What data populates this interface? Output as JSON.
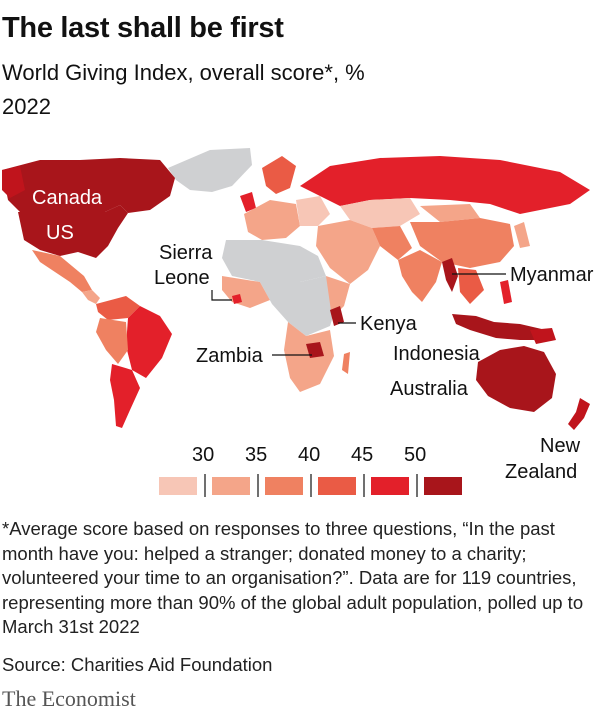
{
  "header": {
    "title": "The last shall be first",
    "subtitle": "World Giving Index, overall score*, %",
    "year": "2022"
  },
  "map_labels": {
    "canada": "Canada",
    "us": "US",
    "sierra_leone_1": "Sierra",
    "sierra_leone_2": "Leone",
    "myanmar": "Myanmar",
    "kenya": "Kenya",
    "indonesia": "Indonesia",
    "zambia": "Zambia",
    "australia": "Australia",
    "new_zealand_1": "New",
    "new_zealand_2": "Zealand"
  },
  "legend": {
    "ticks": [
      "30",
      "35",
      "40",
      "45",
      "50"
    ],
    "colors": [
      "#f7c6b6",
      "#f4a589",
      "#ef8161",
      "#ea5b45",
      "#e3202a",
      "#a8151b"
    ],
    "no_data_color": "#cfd0d2"
  },
  "footnote": "*Average score based on responses to three questions, “In the past month have you: helped a stranger; donated money to a charity; volunteered your time to an organisation?”. Data are for 119 countries, representing more than 90% of the global adult population, polled up to March 31st 2022",
  "source": "Source: Charities Aid Foundation",
  "brand": "The Economist",
  "chart_data": {
    "type": "choropleth",
    "title": "The last shall be first",
    "subtitle": "World Giving Index, overall score*, %",
    "year": "2022",
    "scale_thresholds": [
      30,
      35,
      40,
      45,
      50
    ],
    "highlighted_countries": [
      "Canada",
      "US",
      "Sierra Leone",
      "Myanmar",
      "Kenya",
      "Indonesia",
      "Zambia",
      "Australia",
      "New Zealand"
    ]
  }
}
